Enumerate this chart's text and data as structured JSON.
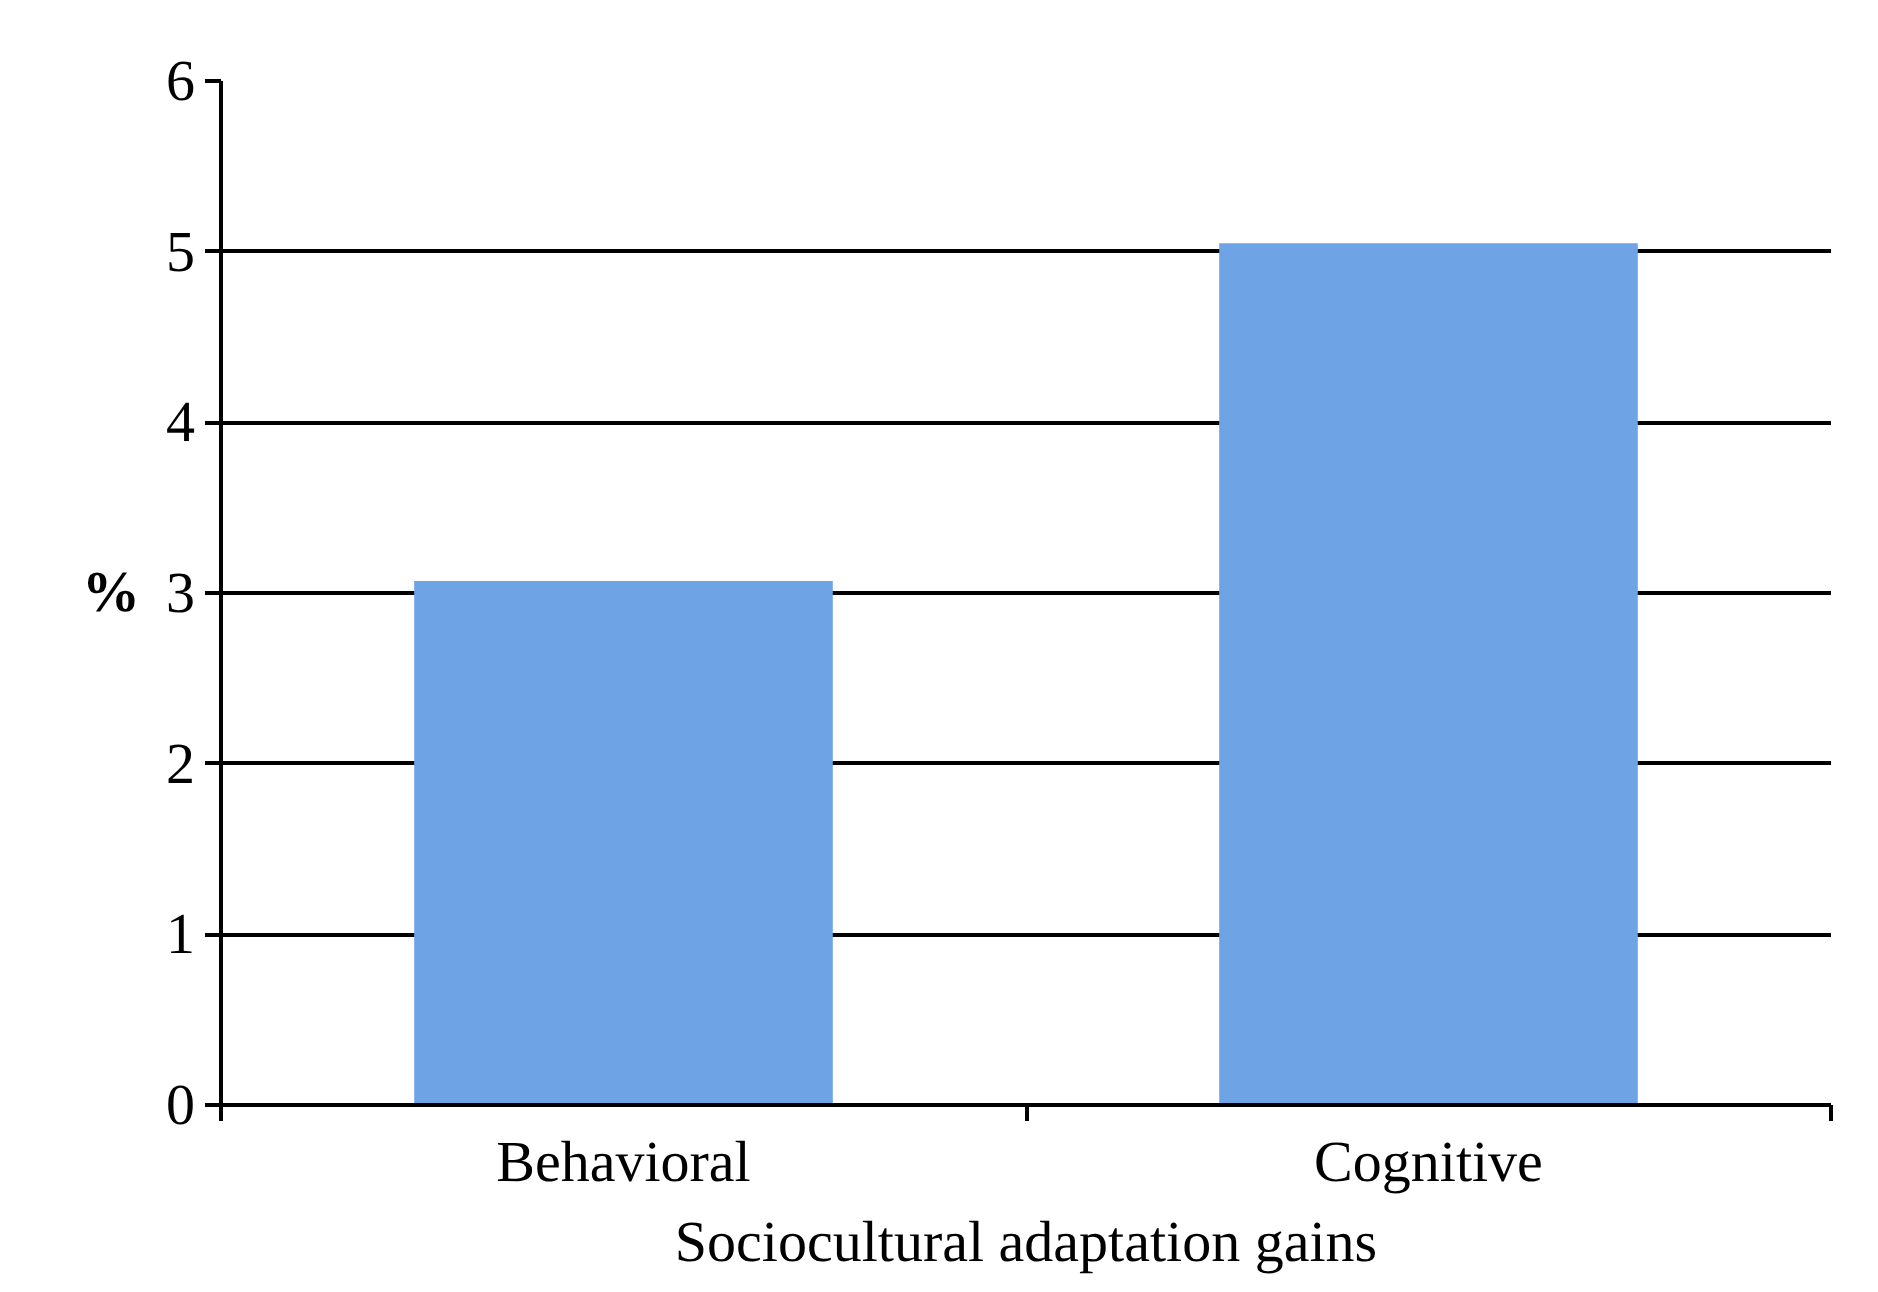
{
  "chart_data": {
    "type": "bar",
    "xlabel": "Sociocultural adaptation gains",
    "ylabel": "%",
    "categories": [
      "Behavioral",
      "Cognitive"
    ],
    "values": [
      3.07,
      5.05
    ],
    "color": "#6ea3e6",
    "ylim": [
      0,
      6
    ],
    "yticks": [
      0,
      1,
      2,
      3,
      4,
      5,
      6
    ],
    "grid": "y"
  }
}
